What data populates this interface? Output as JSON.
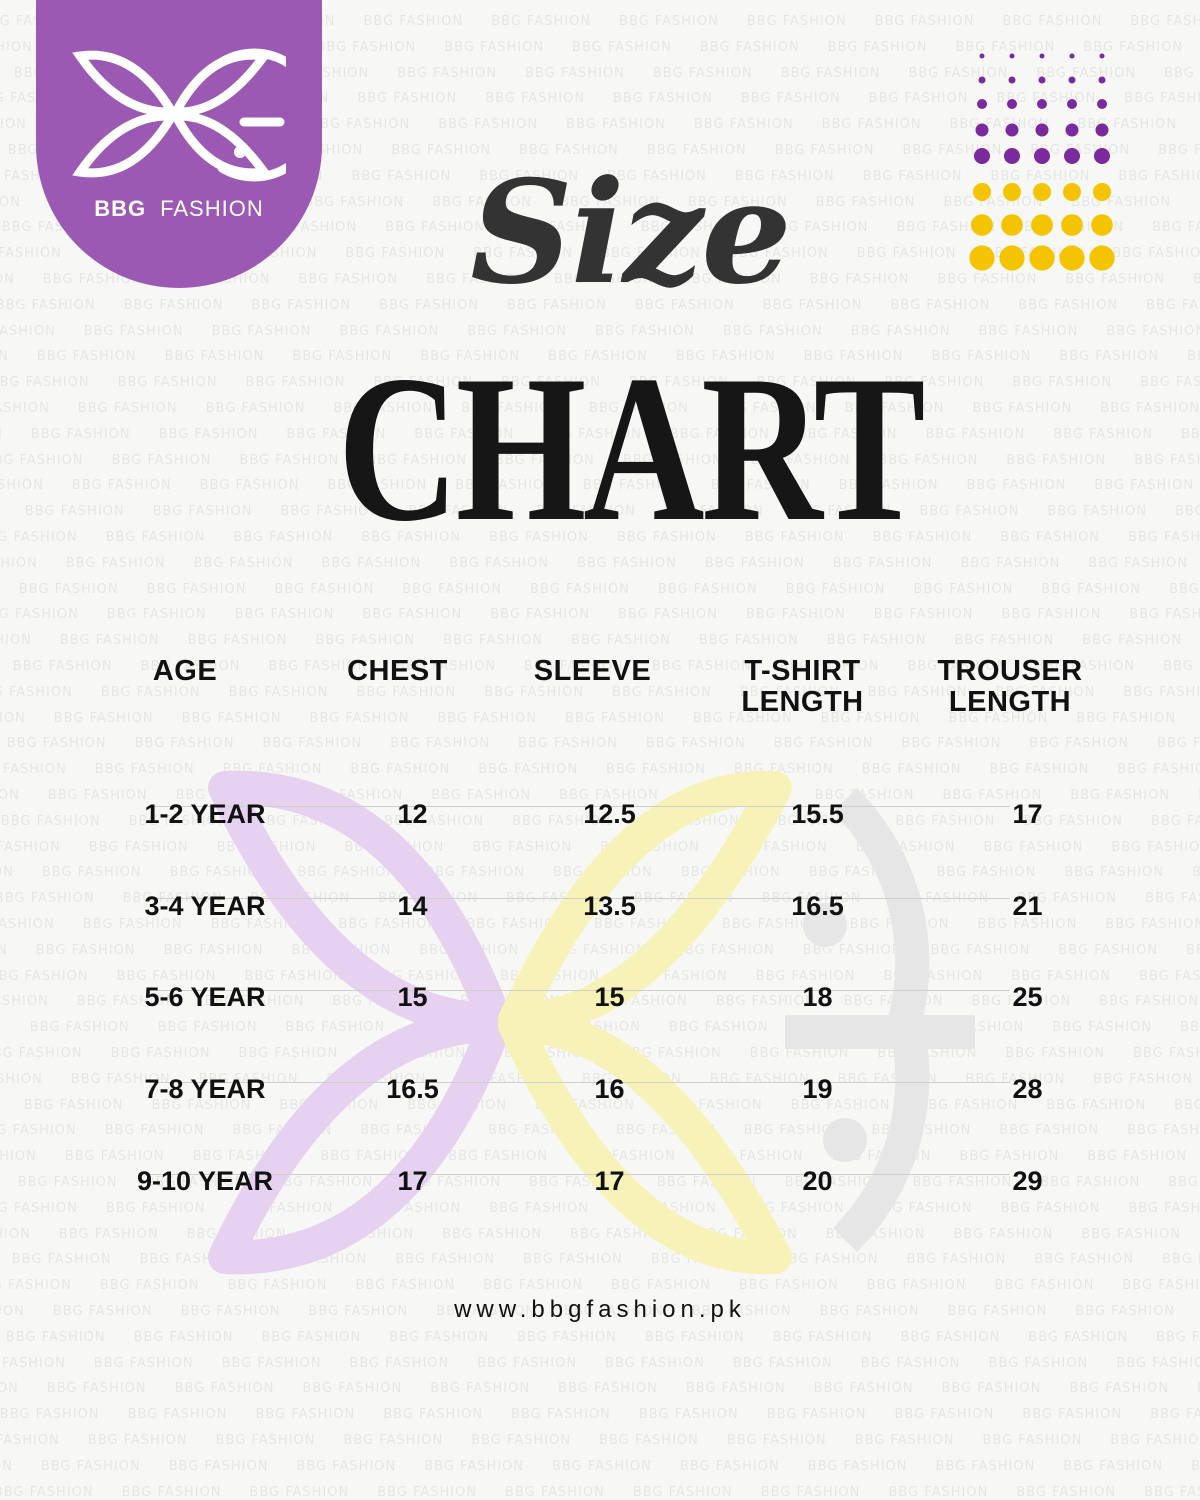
{
  "brand": {
    "name_bold": "BBG",
    "name_light": "FASHION",
    "color": "#9b59b3",
    "watermark_text": "BBG FASHION"
  },
  "title": {
    "line1": "Size",
    "line2": "CHART"
  },
  "table": {
    "headers": [
      "AGE",
      "CHEST",
      "SLEEVE",
      "T-SHIRT\nLENGTH",
      "TROUSER\nLENGTH"
    ],
    "rows": [
      [
        "1-2 YEAR",
        "12",
        "12.5",
        "15.5",
        "17"
      ],
      [
        "3-4 YEAR",
        "14",
        "13.5",
        "16.5",
        "21"
      ],
      [
        "5-6 YEAR",
        "15",
        "15",
        "18",
        "25"
      ],
      [
        "7-8 YEAR",
        "16.5",
        "16",
        "19",
        "28"
      ],
      [
        "9-10 YEAR",
        "17",
        "17",
        "20",
        "29"
      ]
    ]
  },
  "footer": {
    "website": "www.bbgfashion.pk"
  },
  "colors": {
    "purple": "#7b2a9e",
    "yellow": "#f5c400",
    "text": "#111111"
  }
}
